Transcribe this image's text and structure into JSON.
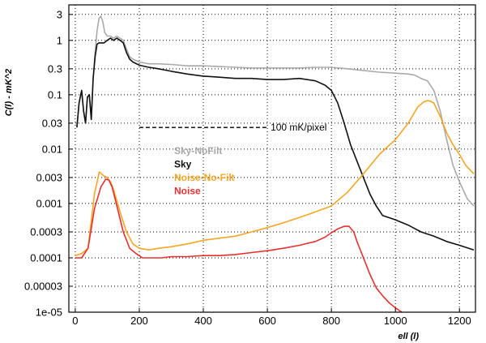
{
  "chart_data": {
    "type": "line",
    "xlabel": "ell (l)",
    "ylabel": "C(l) - mK^2",
    "xlim": [
      -20,
      1250
    ],
    "ylim": [
      1e-05,
      4.5
    ],
    "yscale": "log",
    "grid": true,
    "x_ticks": [
      0,
      200,
      400,
      600,
      800,
      1000,
      1200
    ],
    "x_tick_labels": [
      "0",
      "200",
      "400",
      "600",
      "800",
      "1000",
      "1200"
    ],
    "y_ticks": [
      3,
      1,
      0.3,
      0.1,
      0.03,
      0.01,
      0.003,
      0.001,
      0.0003,
      0.0001,
      3e-05,
      1e-05
    ],
    "y_tick_labels": [
      "3",
      "1",
      "0.3",
      "0.1",
      "0.03",
      "0.01",
      "0.003",
      "0.001",
      "0.0003",
      "0.0001",
      "0.00003",
      "1e-05"
    ],
    "legend_placement": "center-left",
    "series": [
      {
        "name": "Sky-NoFilt",
        "color": "#aaaaaa",
        "x": [
          5,
          12,
          20,
          26,
          32,
          38,
          44,
          50,
          56,
          62,
          68,
          74,
          80,
          86,
          92,
          100,
          110,
          120,
          130,
          140,
          150,
          160,
          170,
          180,
          200,
          230,
          260,
          300,
          350,
          400,
          450,
          500,
          550,
          600,
          650,
          700,
          750,
          800,
          850,
          900,
          950,
          1000,
          1040,
          1060,
          1080,
          1100,
          1120,
          1140,
          1160,
          1180,
          1200,
          1225,
          1245
        ],
        "y": [
          0.025,
          0.07,
          0.12,
          0.05,
          0.03,
          0.09,
          0.1,
          0.035,
          0.2,
          0.6,
          1.5,
          2.5,
          2.8,
          2.2,
          1.4,
          1.2,
          1.2,
          1.1,
          1.2,
          1.1,
          1.0,
          0.7,
          0.5,
          0.45,
          0.4,
          0.37,
          0.37,
          0.36,
          0.34,
          0.34,
          0.33,
          0.32,
          0.31,
          0.31,
          0.31,
          0.31,
          0.32,
          0.32,
          0.3,
          0.28,
          0.26,
          0.25,
          0.24,
          0.23,
          0.2,
          0.18,
          0.12,
          0.05,
          0.015,
          0.005,
          0.0025,
          0.0012,
          0.0009
        ]
      },
      {
        "name": "Sky",
        "color": "#111111",
        "x": [
          5,
          12,
          20,
          26,
          32,
          38,
          44,
          50,
          56,
          62,
          68,
          74,
          80,
          90,
          100,
          110,
          120,
          130,
          140,
          150,
          160,
          170,
          180,
          200,
          230,
          260,
          300,
          350,
          400,
          450,
          500,
          550,
          600,
          650,
          700,
          750,
          780,
          800,
          820,
          840,
          860,
          880,
          900,
          920,
          940,
          960,
          1000,
          1040,
          1080,
          1120,
          1160,
          1200,
          1245
        ],
        "y": [
          0.025,
          0.07,
          0.12,
          0.05,
          0.03,
          0.09,
          0.1,
          0.035,
          0.2,
          0.5,
          0.85,
          0.9,
          0.9,
          0.9,
          1.0,
          1.1,
          1.0,
          1.1,
          1.0,
          0.9,
          0.6,
          0.45,
          0.4,
          0.35,
          0.32,
          0.3,
          0.27,
          0.24,
          0.22,
          0.21,
          0.2,
          0.2,
          0.19,
          0.19,
          0.2,
          0.18,
          0.15,
          0.12,
          0.07,
          0.03,
          0.012,
          0.006,
          0.003,
          0.0015,
          0.0009,
          0.0006,
          0.0005,
          0.0004,
          0.0003,
          0.00025,
          0.0002,
          0.00017,
          0.00014
        ]
      },
      {
        "name": "Noise-No-Filt",
        "color": "#f5a623",
        "x": [
          0,
          20,
          40,
          60,
          75,
          90,
          100,
          110,
          120,
          140,
          160,
          180,
          200,
          230,
          260,
          300,
          350,
          400,
          450,
          500,
          550,
          600,
          650,
          700,
          750,
          800,
          850,
          900,
          950,
          1000,
          1040,
          1070,
          1090,
          1100,
          1110,
          1120,
          1140,
          1160,
          1180,
          1200,
          1220,
          1245
        ],
        "y": [
          0.00011,
          0.00012,
          0.00015,
          0.0015,
          0.0038,
          0.0032,
          0.003,
          0.0025,
          0.0018,
          0.0007,
          0.0003,
          0.00018,
          0.00015,
          0.00014,
          0.00015,
          0.00016,
          0.00018,
          0.00021,
          0.00023,
          0.00025,
          0.0003,
          0.00036,
          0.00044,
          0.00055,
          0.0007,
          0.0009,
          0.0016,
          0.0035,
          0.008,
          0.015,
          0.03,
          0.06,
          0.075,
          0.078,
          0.076,
          0.07,
          0.04,
          0.02,
          0.012,
          0.008,
          0.005,
          0.0035
        ]
      },
      {
        "name": "Noise",
        "color": "#e8312f",
        "x": [
          0,
          20,
          40,
          60,
          80,
          95,
          105,
          115,
          130,
          150,
          170,
          190,
          210,
          240,
          270,
          300,
          350,
          400,
          450,
          500,
          550,
          600,
          650,
          700,
          750,
          780,
          800,
          820,
          840,
          855,
          870,
          880,
          900,
          920,
          940,
          960,
          980,
          1000,
          1020
        ],
        "y": [
          0.0001,
          0.0001,
          0.00015,
          0.0008,
          0.002,
          0.0028,
          0.0027,
          0.002,
          0.0009,
          0.0003,
          0.00015,
          0.00012,
          0.0001,
          0.0001,
          0.0001,
          0.000105,
          0.000105,
          0.00011,
          0.00011,
          0.000115,
          0.000125,
          0.000135,
          0.00015,
          0.00017,
          0.0002,
          0.00024,
          0.00029,
          0.00034,
          0.00038,
          0.00038,
          0.0003,
          0.0002,
          0.0001,
          5e-05,
          2.8e-05,
          2e-05,
          1.5e-05,
          1.2e-05,
          1e-05
        ]
      }
    ],
    "annotation": {
      "text": "100 mK/pixel",
      "x_start": 200,
      "x_end": 600,
      "y": 0.025
    }
  }
}
